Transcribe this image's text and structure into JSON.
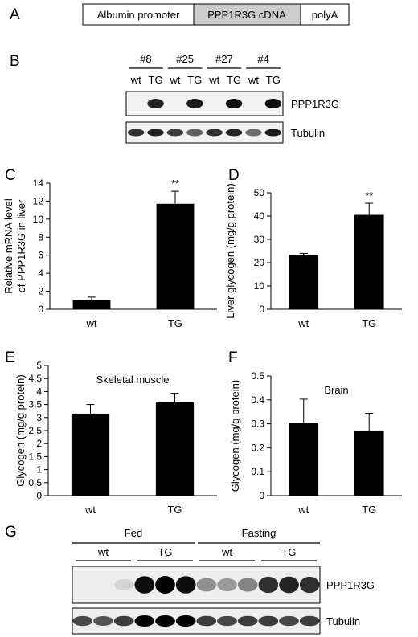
{
  "panel_letters": {
    "a": "A",
    "b": "B",
    "c": "C",
    "d": "D",
    "e": "E",
    "f": "F",
    "g": "G"
  },
  "construct": {
    "promoter": "Albumin promoter",
    "cdna": "PPP1R3G cDNA",
    "polya": "polyA",
    "cdna_fill": "#cccccc"
  },
  "blot_b": {
    "mice": [
      "#8",
      "#25",
      "#27",
      "#4"
    ],
    "lane_labels": [
      "wt",
      "TG",
      "wt",
      "TG",
      "wt",
      "TG",
      "wt",
      "TG"
    ],
    "bands": [
      "PPP1R3G",
      "Tubulin"
    ],
    "target_intensity": [
      0.05,
      0.85,
      0.05,
      0.9,
      0.05,
      0.95,
      0.05,
      0.95
    ],
    "tubulin_intensity": [
      0.8,
      0.85,
      0.75,
      0.6,
      0.8,
      0.85,
      0.55,
      0.9
    ]
  },
  "blot_g": {
    "groups": [
      "Fed",
      "Fasting"
    ],
    "subgroups": [
      "wt",
      "TG",
      "wt",
      "TG"
    ],
    "bands": [
      "PPP1R3G",
      "Tubulin"
    ],
    "target_intensity": [
      0.05,
      0.05,
      0.1,
      0.95,
      1.0,
      0.95,
      0.4,
      0.35,
      0.45,
      0.8,
      0.85,
      0.8
    ],
    "tubulin_intensity": [
      0.7,
      0.65,
      0.75,
      1.0,
      1.0,
      1.0,
      0.75,
      0.7,
      0.75,
      0.75,
      0.7,
      0.75
    ]
  },
  "chart_data": [
    {
      "panel": "C",
      "type": "bar",
      "title": "",
      "categories": [
        "wt",
        "TG"
      ],
      "values": [
        1.0,
        11.7
      ],
      "errors": [
        0.35,
        1.4
      ],
      "ylabel": "Relative mRNA level of PPP1R3G in liver",
      "ylabel_lines": [
        "Relative mRNA level",
        "of PPP1R3G in liver"
      ],
      "ylim": [
        0,
        14
      ],
      "yticks": [
        0,
        2,
        4,
        6,
        8,
        10,
        12,
        14
      ],
      "ytick_labels": [
        "0",
        "2",
        "4",
        "6",
        "8",
        "10",
        "12",
        "14"
      ],
      "annotations": [
        "",
        "**"
      ],
      "bar_color": "#000000"
    },
    {
      "panel": "D",
      "type": "bar",
      "title": "",
      "categories": [
        "wt",
        "TG"
      ],
      "values": [
        23.2,
        40.5
      ],
      "errors": [
        0.8,
        5.0
      ],
      "ylabel": "Liver glycogen (mg/g protein)",
      "ylabel_lines": [
        "Liver glycogen (mg/g protein)"
      ],
      "ylim": [
        0,
        50
      ],
      "yticks": [
        0,
        10,
        20,
        30,
        40,
        50
      ],
      "ytick_labels": [
        "0",
        "10",
        "20",
        "30",
        "40",
        "50"
      ],
      "annotations": [
        "",
        "**"
      ],
      "bar_color": "#000000"
    },
    {
      "panel": "E",
      "type": "bar",
      "title": "Skeletal muscle",
      "categories": [
        "wt",
        "TG"
      ],
      "values": [
        3.15,
        3.58
      ],
      "errors": [
        0.35,
        0.35
      ],
      "ylabel": "Glycogen (mg/g protein)",
      "ylabel_lines": [
        "Glycogen (mg/g protein)"
      ],
      "ylim": [
        0,
        5
      ],
      "yticks": [
        0,
        0.5,
        1,
        1.5,
        2,
        2.5,
        3,
        3.5,
        4,
        4.5,
        5
      ],
      "ytick_labels": [
        "0",
        "0.5",
        "1",
        "1.5",
        "2",
        "2.5",
        "3",
        "3.5",
        "4",
        "4.5",
        "5"
      ],
      "annotations": [
        "",
        ""
      ],
      "bar_color": "#000000"
    },
    {
      "panel": "F",
      "type": "bar",
      "title": "Brain",
      "categories": [
        "wt",
        "TG"
      ],
      "values": [
        0.305,
        0.272
      ],
      "errors": [
        0.098,
        0.072
      ],
      "ylabel": "Glycogen (mg/g protein)",
      "ylabel_lines": [
        "Glycogen (mg/g protein)"
      ],
      "ylim": [
        0,
        0.5
      ],
      "yticks": [
        0,
        0.1,
        0.2,
        0.3,
        0.4,
        0.5
      ],
      "ytick_labels": [
        "0",
        "0.1",
        "0.2",
        "0.3",
        "0.4",
        "0.5"
      ],
      "annotations": [
        "",
        ""
      ],
      "bar_color": "#000000"
    }
  ]
}
